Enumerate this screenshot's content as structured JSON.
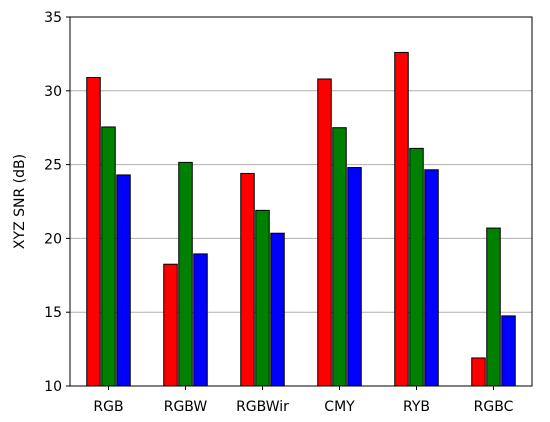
{
  "chart_data": {
    "type": "bar",
    "title": "",
    "xlabel": "",
    "ylabel": "XYZ SNR (dB)",
    "categories": [
      "RGB",
      "RGBW",
      "RGBWir",
      "CMY",
      "RYB",
      "RGBC"
    ],
    "ylim": [
      10,
      35
    ],
    "yticks": [
      "10",
      "15",
      "20",
      "25",
      "30",
      "35"
    ],
    "grid": "horizontal",
    "legend": "none",
    "series": [
      {
        "color": "#ff0000",
        "values": [
          30.9,
          18.25,
          24.4,
          30.8,
          32.6,
          11.9
        ]
      },
      {
        "color": "#008000",
        "values": [
          27.55,
          25.15,
          21.9,
          27.5,
          26.1,
          20.7
        ]
      },
      {
        "color": "#0000ff",
        "values": [
          24.3,
          18.95,
          20.35,
          24.8,
          24.65,
          14.75
        ]
      }
    ]
  }
}
